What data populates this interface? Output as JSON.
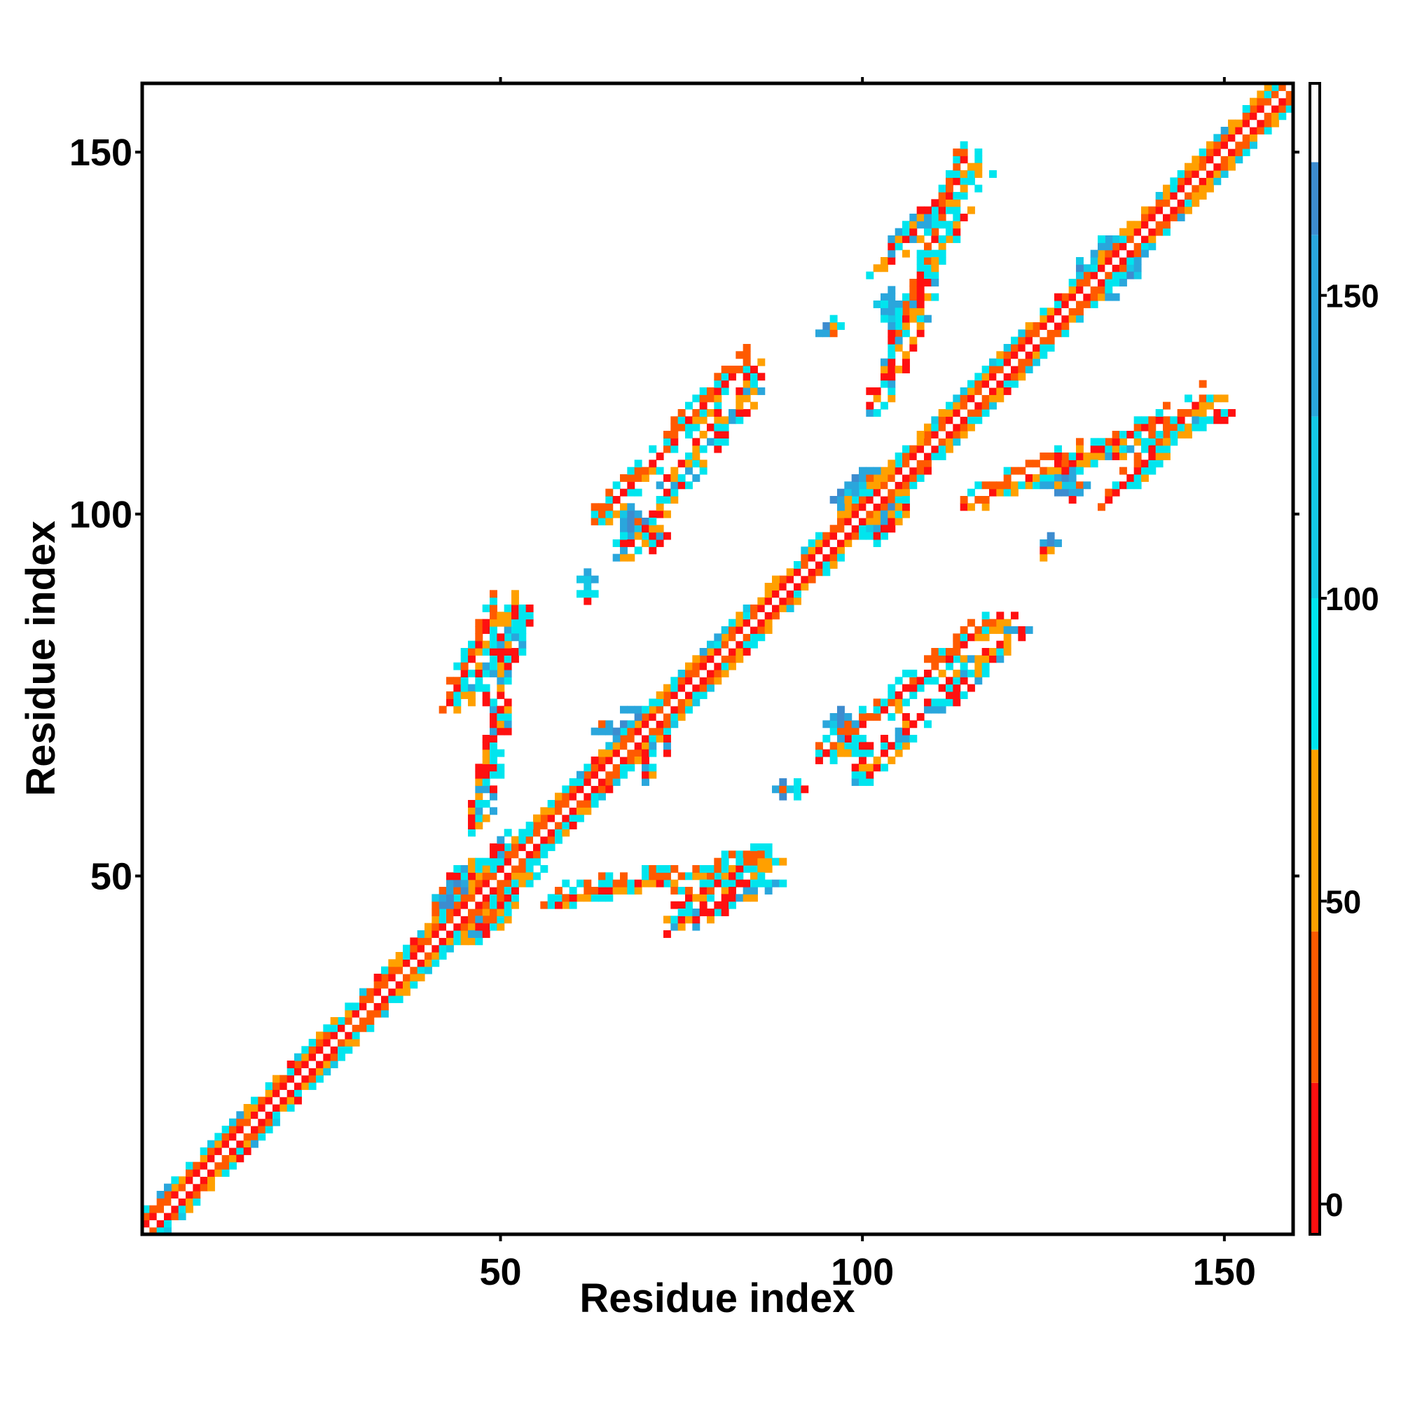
{
  "chart_data": {
    "type": "heatmap",
    "title": "",
    "xlabel": "Residue index",
    "ylabel": "Residue index",
    "xlim": [
      1,
      159
    ],
    "ylim": [
      1,
      159
    ],
    "x_ticks": [
      50,
      100,
      150
    ],
    "y_ticks": [
      50,
      100,
      150
    ],
    "colorbar": {
      "range": [
        -5,
        185
      ],
      "ticks": [
        0,
        50,
        100,
        150
      ],
      "bands": [
        {
          "from": -5,
          "to": 20,
          "color": "#ff1010"
        },
        {
          "from": 20,
          "to": 45,
          "color": "#ff5a00"
        },
        {
          "from": 45,
          "to": 75,
          "color": "#ffa000"
        },
        {
          "from": 75,
          "to": 100,
          "color": "#00e5ee"
        },
        {
          "from": 100,
          "to": 130,
          "color": "#14c8e6"
        },
        {
          "from": 130,
          "to": 160,
          "color": "#2aa6dc"
        },
        {
          "from": 160,
          "to": 172,
          "color": "#3d8ccf"
        },
        {
          "from": 172,
          "to": 185,
          "color": "#ffffff"
        }
      ]
    },
    "grid": false,
    "diagonal_band": {
      "x_from": 1,
      "x_to": 159,
      "half_width": 3
    },
    "contact_segments": [
      {
        "x1": 48,
        "y1": 43,
        "x2": 60,
        "y2": 60,
        "width": 2
      },
      {
        "x1": 56,
        "y1": 46,
        "x2": 87,
        "y2": 52,
        "width": 2
      },
      {
        "x1": 74,
        "y1": 46,
        "x2": 87,
        "y2": 52,
        "width": 2
      },
      {
        "x1": 42,
        "y1": 73,
        "x2": 49,
        "y2": 87,
        "width": 2
      },
      {
        "x1": 63,
        "y1": 99,
        "x2": 84,
        "y2": 121,
        "width": 2
      },
      {
        "x1": 94,
        "y1": 66,
        "x2": 119,
        "y2": 86,
        "width": 2
      },
      {
        "x1": 105,
        "y1": 125,
        "x2": 114,
        "y2": 150,
        "width": 2
      },
      {
        "x1": 133,
        "y1": 101,
        "x2": 147,
        "y2": 116,
        "width": 2
      },
      {
        "x1": 114,
        "y1": 101,
        "x2": 142,
        "y2": 113,
        "width": 2
      }
    ],
    "contact_blobs": [
      {
        "x": 44,
        "y": 46,
        "w": 7,
        "h": 7
      },
      {
        "x": 68,
        "y": 70,
        "w": 10,
        "h": 7
      },
      {
        "x": 101,
        "y": 102,
        "w": 10,
        "h": 9
      },
      {
        "x": 134,
        "y": 134,
        "w": 9,
        "h": 8
      },
      {
        "x": 68,
        "y": 99,
        "w": 5,
        "h": 5
      },
      {
        "x": 104,
        "y": 129,
        "w": 4,
        "h": 4
      },
      {
        "x": 97,
        "y": 71,
        "w": 4,
        "h": 4
      },
      {
        "x": 128,
        "y": 104,
        "w": 6,
        "h": 3
      },
      {
        "x": 89,
        "y": 62,
        "w": 3,
        "h": 3
      },
      {
        "x": 62,
        "y": 91,
        "w": 3,
        "h": 3
      },
      {
        "x": 95,
        "y": 125,
        "w": 3,
        "h": 3
      },
      {
        "x": 126,
        "y": 96,
        "w": 3,
        "h": 3
      }
    ]
  }
}
